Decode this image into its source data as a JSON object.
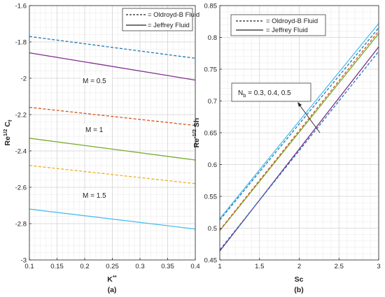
{
  "chart_data": [
    {
      "type": "line",
      "panel_label": "(a)",
      "xlabel": "K**",
      "ylabel": "Re^1/2 Cf",
      "xlim": [
        0.1,
        0.4
      ],
      "ylim": [
        -3,
        -1.6
      ],
      "xticks": [
        "0.1",
        "0.15",
        "0.2",
        "0.25",
        "0.3",
        "0.35",
        "0.4"
      ],
      "yticks": [
        "-1.6",
        "-1.8",
        "-2",
        "-2.2",
        "-2.4",
        "-2.6",
        "-2.8",
        "-3"
      ],
      "grid": true,
      "legend": {
        "placement": "top-right",
        "entries": [
          {
            "label": "= Oldroyd-B Fluid",
            "style": "dashed"
          },
          {
            "label": "= Jeffrey Fluid",
            "style": "solid"
          }
        ]
      },
      "annotations": [
        "M = 0.5",
        "M = 1",
        "M = 1.5"
      ],
      "series": [
        {
          "style": "dashed",
          "color": "#1f77b4",
          "x": [
            0.1,
            0.4
          ],
          "y": [
            -1.77,
            -1.89
          ]
        },
        {
          "style": "solid",
          "color": "#7e2f8e",
          "x": [
            0.1,
            0.4
          ],
          "y": [
            -1.86,
            -2.01
          ]
        },
        {
          "style": "dashed",
          "color": "#d95319",
          "x": [
            0.1,
            0.4
          ],
          "y": [
            -2.16,
            -2.26
          ]
        },
        {
          "style": "solid",
          "color": "#77ac30",
          "x": [
            0.1,
            0.4
          ],
          "y": [
            -2.33,
            -2.45
          ]
        },
        {
          "style": "dashed",
          "color": "#edb120",
          "x": [
            0.1,
            0.4
          ],
          "y": [
            -2.48,
            -2.58
          ]
        },
        {
          "style": "solid",
          "color": "#4dbeee",
          "x": [
            0.1,
            0.4
          ],
          "y": [
            -2.72,
            -2.83
          ]
        }
      ]
    },
    {
      "type": "line",
      "panel_label": "(b)",
      "xlabel": "Sc",
      "ylabel": "Re^-1/2 Sh",
      "xlim": [
        1,
        3
      ],
      "ylim": [
        0.45,
        0.85
      ],
      "xticks": [
        "1",
        "1.5",
        "2",
        "2.5",
        "3"
      ],
      "yticks": [
        "0.45",
        "0.5",
        "0.55",
        "0.6",
        "0.65",
        "0.7",
        "0.75",
        "0.8",
        "0.85"
      ],
      "grid": true,
      "legend": {
        "placement": "top",
        "entries": [
          {
            "label": "= Oldroyd-B Fluid",
            "style": "dashed"
          },
          {
            "label": "= Jeffrey Fluid",
            "style": "solid"
          }
        ]
      },
      "annotations": [
        "Nb = 0.3, 0.4, 0.5"
      ],
      "series": [
        {
          "style": "solid",
          "color": "#4dbeee",
          "x": [
            1,
            3
          ],
          "y": [
            0.515,
            0.822
          ]
        },
        {
          "style": "dashed",
          "color": "#1f77b4",
          "x": [
            1,
            3
          ],
          "y": [
            0.513,
            0.815
          ]
        },
        {
          "style": "solid",
          "color": "#77ac30",
          "x": [
            1,
            3
          ],
          "y": [
            0.496,
            0.806
          ]
        },
        {
          "style": "dashed",
          "color": "#d95319",
          "x": [
            1,
            3
          ],
          "y": [
            0.497,
            0.81
          ]
        },
        {
          "style": "solid",
          "color": "#7e2f8e",
          "x": [
            1,
            3
          ],
          "y": [
            0.464,
            0.785
          ]
        },
        {
          "style": "dashed",
          "color": "#1f77b4",
          "x": [
            1,
            3
          ],
          "y": [
            0.466,
            0.778
          ]
        }
      ]
    }
  ]
}
